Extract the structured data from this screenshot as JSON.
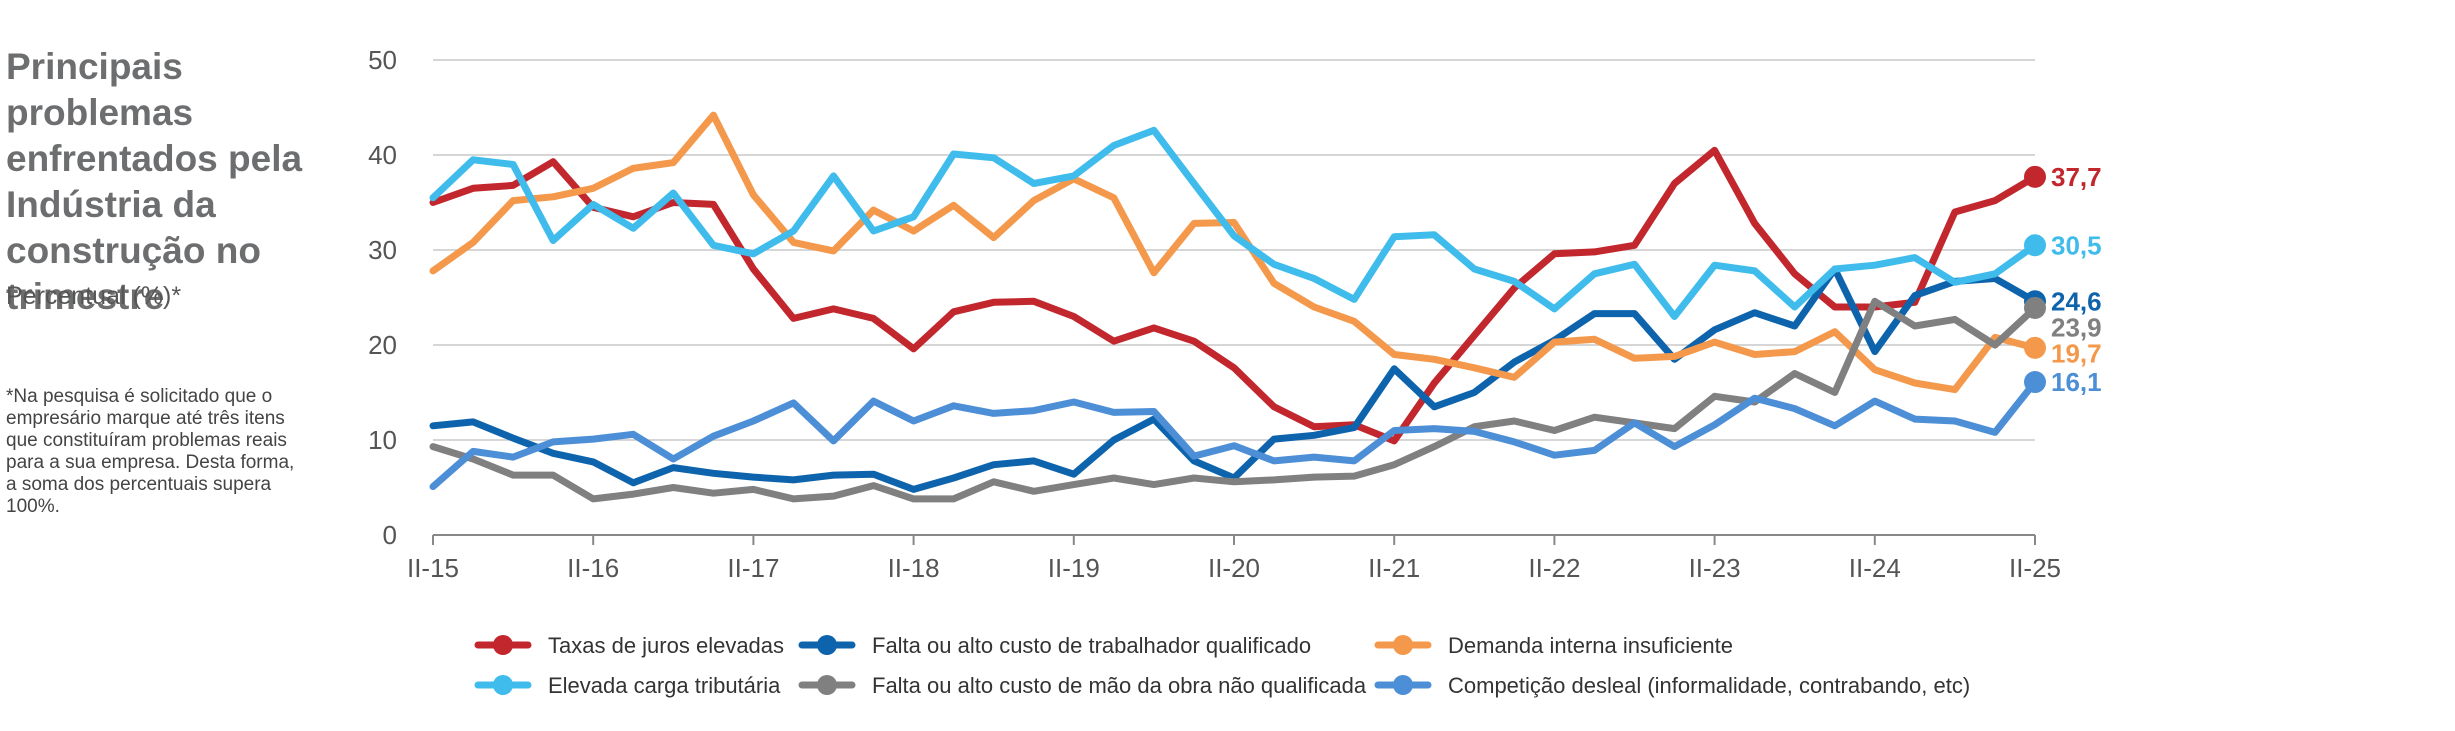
{
  "title": "Principais problemas enfrentados pela Indústria da construção no trimestre",
  "subtitle": "Percentual (%)*",
  "note": "*Na pesquisa é solicitado que o empresário marque até três itens que constituíram problemas reais para a sua empresa. Desta forma, a soma dos percentuais supera 100%.",
  "chart_data": {
    "type": "line",
    "title": "Principais problemas enfrentados pela Indústria da construção no trimestre",
    "ylabel": "Percentual (%)*",
    "ylim": [
      0,
      50
    ],
    "yticks": [
      0,
      10,
      20,
      30,
      40,
      50
    ],
    "grid": true,
    "legend_position": "bottom",
    "x_tick_labels": [
      "II-15",
      "II-16",
      "II-17",
      "II-18",
      "II-19",
      "II-20",
      "II-21",
      "II-22",
      "II-23",
      "II-24",
      "II-25"
    ],
    "x_tick_step": 4,
    "series": [
      {
        "name": "Taxas de juros elevadas",
        "color": "#c1272d",
        "end_label": "37,7",
        "values": [
          35.0,
          36.5,
          36.8,
          39.3,
          34.5,
          33.5,
          35.0,
          34.8,
          28.0,
          22.8,
          23.8,
          22.8,
          19.6,
          23.5,
          24.5,
          24.6,
          23.0,
          20.4,
          21.8,
          20.4,
          17.6,
          13.5,
          11.4,
          11.6,
          9.9,
          16.0,
          21.0,
          26.0,
          29.6,
          29.8,
          30.5,
          37.0,
          40.5,
          32.8,
          27.5,
          24.0,
          24.0,
          24.5,
          34.0,
          35.2,
          37.7
        ]
      },
      {
        "name": "Falta ou alto custo de trabalhador qualificado",
        "color": "#0e64ac",
        "end_label": "24,6",
        "values": [
          11.5,
          11.9,
          10.2,
          8.6,
          7.7,
          5.5,
          7.1,
          6.5,
          6.1,
          5.8,
          6.3,
          6.4,
          4.8,
          6.0,
          7.4,
          7.8,
          6.4,
          10.0,
          12.2,
          7.8,
          6.0,
          10.1,
          10.5,
          11.3,
          17.5,
          13.5,
          15.0,
          18.2,
          20.5,
          23.3,
          23.3,
          18.5,
          21.6,
          23.4,
          22.0,
          28.0,
          19.3,
          25.2,
          26.7,
          27.0,
          24.6
        ]
      },
      {
        "name": "Demanda interna insuficiente",
        "color": "#f4994c",
        "end_label": "19,7",
        "values": [
          27.8,
          30.8,
          35.2,
          35.6,
          36.5,
          38.6,
          39.2,
          44.2,
          35.8,
          30.8,
          29.9,
          34.2,
          32.0,
          34.7,
          31.3,
          35.2,
          37.5,
          35.5,
          27.6,
          32.8,
          32.9,
          26.5,
          24.0,
          22.5,
          19.0,
          18.5,
          17.6,
          16.6,
          20.3,
          20.6,
          18.6,
          18.8,
          20.3,
          19.0,
          19.3,
          21.4,
          17.4,
          16.0,
          15.3,
          20.8,
          19.7
        ]
      },
      {
        "name": "Elevada carga tributária",
        "color": "#3fbcec",
        "end_label": "30,5",
        "values": [
          35.5,
          39.5,
          39.0,
          31.0,
          34.8,
          32.3,
          36.0,
          30.5,
          29.6,
          32.0,
          37.8,
          32.0,
          33.5,
          40.1,
          39.7,
          37.0,
          37.8,
          41.0,
          42.6,
          37.0,
          31.5,
          28.5,
          27.0,
          24.8,
          31.4,
          31.6,
          28.0,
          26.7,
          23.8,
          27.5,
          28.5,
          23.0,
          28.4,
          27.8,
          24.0,
          28.0,
          28.4,
          29.2,
          26.6,
          27.5,
          30.5
        ]
      },
      {
        "name": "Falta ou alto custo de mão da obra não qualificada",
        "color": "#808080",
        "end_label": "23,9",
        "values": [
          9.3,
          8.0,
          6.3,
          6.3,
          3.8,
          4.3,
          5.0,
          4.4,
          4.8,
          3.8,
          4.1,
          5.2,
          3.8,
          3.8,
          5.6,
          4.6,
          5.3,
          6.0,
          5.3,
          6.0,
          5.6,
          5.8,
          6.1,
          6.2,
          7.4,
          9.3,
          11.4,
          12.0,
          11.0,
          12.4,
          11.8,
          11.2,
          14.6,
          14.0,
          17.0,
          15.0,
          24.6,
          22.0,
          22.7,
          20.0,
          23.9
        ]
      },
      {
        "name": "Competição desleal (informalidade, contrabando, etc)",
        "color": "#4d8fd6",
        "end_label": "16,1",
        "values": [
          5.1,
          8.8,
          8.2,
          9.8,
          10.1,
          10.6,
          8.0,
          10.4,
          12.0,
          13.9,
          9.9,
          14.1,
          12.0,
          13.6,
          12.8,
          13.1,
          14.0,
          12.9,
          13.0,
          8.3,
          9.4,
          7.8,
          8.2,
          7.8,
          11.0,
          11.2,
          10.9,
          9.8,
          8.4,
          8.9,
          11.8,
          9.3,
          11.6,
          14.4,
          13.3,
          11.5,
          14.1,
          12.2,
          12.0,
          10.8,
          16.1
        ]
      }
    ]
  }
}
